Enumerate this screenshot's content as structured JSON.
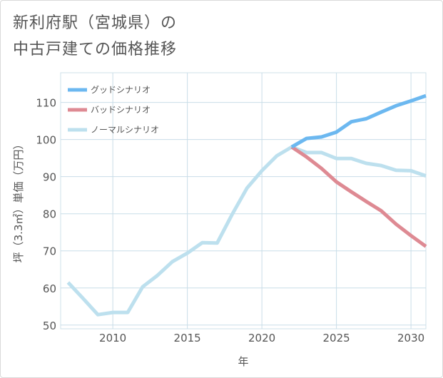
{
  "page": {
    "title": "新利府駅（宮城県）の\n中古戸建ての価格推移"
  },
  "chart_data": {
    "type": "line",
    "xlabel": "年",
    "ylabel": "坪（3.3㎡）単価（万円）",
    "xlim": [
      2006.5,
      2031
    ],
    "ylim": [
      49,
      118
    ],
    "xticks": [
      2010,
      2015,
      2020,
      2025,
      2030
    ],
    "yticks": [
      50,
      60,
      70,
      80,
      90,
      100,
      110
    ],
    "grid": true,
    "legend_position": "top-left",
    "series": [
      {
        "name": "グッドシナリオ",
        "color": "#6cb8f0",
        "x": [
          2022,
          2023,
          2024,
          2025,
          2026,
          2027,
          2028,
          2029,
          2030,
          2031
        ],
        "y": [
          98,
          100.3,
          100.7,
          102,
          104.8,
          105.6,
          107.4,
          109.1,
          110.4,
          111.8
        ]
      },
      {
        "name": "バッドシナリオ",
        "color": "#de8a93",
        "x": [
          2022,
          2023,
          2024,
          2025,
          2026,
          2027,
          2028,
          2029,
          2030,
          2031
        ],
        "y": [
          98,
          95.3,
          92.2,
          88.6,
          85.9,
          83.3,
          80.8,
          77.2,
          74.1,
          71.2
        ]
      },
      {
        "name": "ノーマルシナリオ",
        "color": "#bde0ee",
        "x": [
          2007,
          2008,
          2009,
          2010,
          2011,
          2012,
          2013,
          2014,
          2015,
          2016,
          2017,
          2018,
          2019,
          2020,
          2021,
          2022,
          2023,
          2024,
          2025,
          2026,
          2027,
          2028,
          2029,
          2030,
          2031
        ],
        "y": [
          61.5,
          57.2,
          52.8,
          53.4,
          53.4,
          60.3,
          63.4,
          67.1,
          69.4,
          72.2,
          72.1,
          79.8,
          86.9,
          91.6,
          95.6,
          98,
          96.5,
          96.5,
          94.9,
          94.9,
          93.6,
          93,
          91.7,
          91.6,
          90.2
        ]
      }
    ]
  }
}
